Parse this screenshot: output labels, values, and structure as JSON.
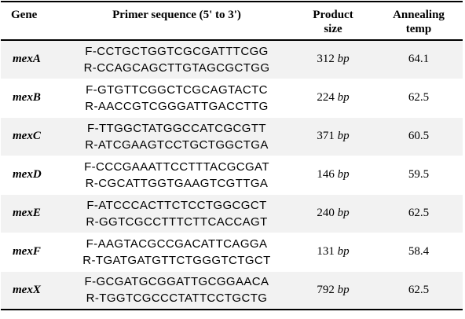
{
  "headers": {
    "gene": "Gene",
    "primer": "Primer sequence (5' to 3')",
    "size_line1": "Product",
    "size_line2": "size",
    "temp_line1": "Annealing",
    "temp_line2": "temp"
  },
  "rows": [
    {
      "gene": "mexA",
      "forward": "F-CCTGCTGGTCGCGATTTCGG",
      "reverse": "R-CCAGCAGCTTGTAGCGCTGG",
      "size": "312",
      "unit": "bp",
      "temp": "64.1"
    },
    {
      "gene": "mexB",
      "forward": "F-GTGTTCGGCTCGCAGTACTC",
      "reverse": "R-AACCGTCGGGATTGACCTTG",
      "size": "224",
      "unit": "bp",
      "temp": "62.5"
    },
    {
      "gene": "mexC",
      "forward": "F-TTGGCTATGGCCATCGCGTT",
      "reverse": "R-ATCGAAGTCCTGCTGGCTGA",
      "size": "371",
      "unit": "bp",
      "temp": "60.5"
    },
    {
      "gene": "mexD",
      "forward": "F-CCCGAAATTCCTTTACGCGAT",
      "reverse": "R-CGCATTGGTGAAGTCGTTGA",
      "size": "146",
      "unit": "bp",
      "temp": "59.5"
    },
    {
      "gene": "mexE",
      "forward": "F-ATCCCACTTCTCCTGGCGCT",
      "reverse": "R-GGTCGCCTTTCTTCACCAGT",
      "size": "240",
      "unit": "bp",
      "temp": "62.5"
    },
    {
      "gene": "mexF",
      "forward": "F-AAGTACGCCGACATTCAGGA",
      "reverse": "R-TGATGATGTTCTGGGTCTGCT",
      "size": "131",
      "unit": "bp",
      "temp": "58.4"
    },
    {
      "gene": "mexX",
      "forward": "F-GCGATGCGGATTGCGGAACA",
      "reverse": "R-TGGTCGCCCTATTCCTGCTG",
      "size": "792",
      "unit": "bp",
      "temp": "62.5"
    }
  ],
  "colors": {
    "row_shade": "#f2f2f2",
    "rule": "#000000",
    "text": "#000000"
  }
}
